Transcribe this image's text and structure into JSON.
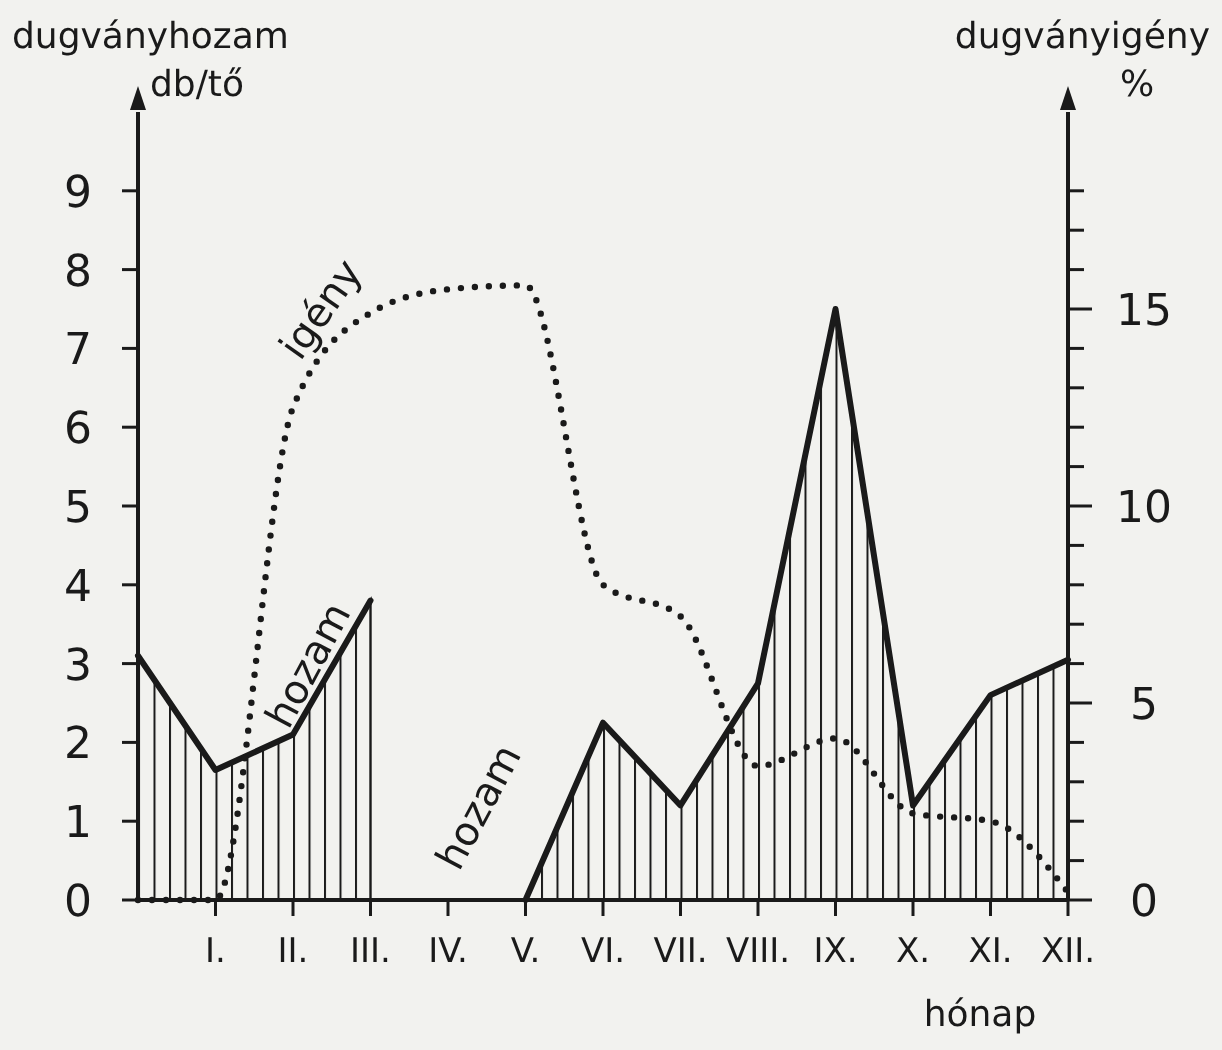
{
  "chart_data": {
    "type": "area",
    "xlabel": "hónap",
    "ylabel": "dugványhozam db/tő",
    "y2label": "dugványigény %",
    "categories": [
      null,
      "I.",
      "II.",
      "III.",
      "IV.",
      "V.",
      "VI.",
      "VII.",
      "VIII.",
      "IX.",
      "X.",
      "XI.",
      "XII."
    ],
    "ylim": [
      0,
      10
    ],
    "yticks": [
      0,
      1,
      2,
      3,
      4,
      5,
      6,
      7,
      8,
      9
    ],
    "y2lim": [
      0,
      20
    ],
    "y2ticks": [
      0,
      {
        "value": 1,
        "label": null
      },
      {
        "value": 2,
        "label": null
      },
      {
        "value": 3,
        "label": null
      },
      {
        "value": 4,
        "label": null
      },
      5,
      {
        "value": 6,
        "label": null
      },
      {
        "value": 7,
        "label": null
      },
      {
        "value": 8,
        "label": null
      },
      {
        "value": 9,
        "label": null
      },
      10,
      {
        "value": 11,
        "label": null
      },
      {
        "value": 12,
        "label": null
      },
      {
        "value": 13,
        "label": null
      },
      {
        "value": 14,
        "label": null
      },
      15,
      {
        "value": 16,
        "label": null
      },
      {
        "value": 17,
        "label": null
      },
      {
        "value": 18,
        "label": null
      }
    ],
    "annotations": [
      "hozam"
    ],
    "series": [
      {
        "name": "hozam",
        "color": "#1a1a1a",
        "values": [
          3.1,
          1.65,
          2.1,
          3.8,
          null,
          0,
          2.25,
          1.2,
          2.75,
          7.5,
          1.2,
          2.6,
          3.05
        ]
      },
      {
        "name": "igény",
        "type": "line",
        "axis": "y2",
        "line_style": "dotted",
        "color": "#1a1a1a",
        "values": [
          0,
          0,
          12.5,
          14.9,
          15.5,
          15.6,
          8,
          7.2,
          3.4,
          4.1,
          2.2,
          2,
          0.2
        ]
      }
    ]
  }
}
